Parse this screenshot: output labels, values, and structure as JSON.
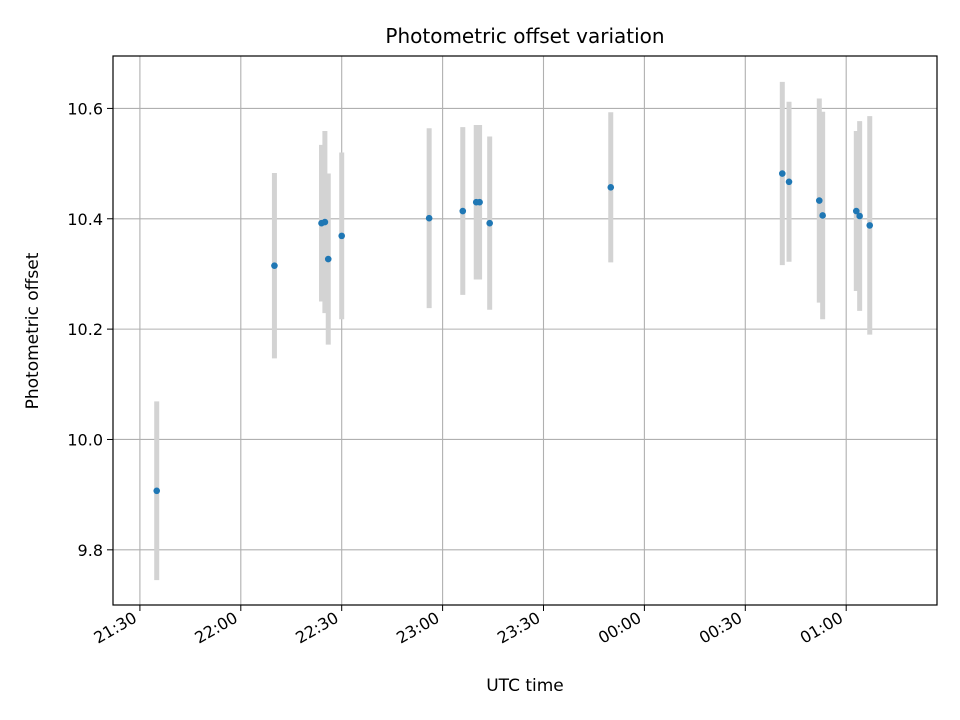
{
  "chart_data": {
    "type": "scatter",
    "title": "Photometric offset variation",
    "xlabel": "UTC time",
    "ylabel": "Photometric offset",
    "grid": true,
    "ylim": [
      9.7,
      10.695
    ],
    "xlim": [
      "21:22",
      "01:27"
    ],
    "x_ticks": [
      "21:30",
      "22:00",
      "22:30",
      "23:00",
      "23:30",
      "00:00",
      "00:30",
      "01:00"
    ],
    "y_ticks": [
      "9.8",
      "10.0",
      "10.2",
      "10.4",
      "10.6"
    ],
    "series": [
      {
        "marker_color": "#1f77b4",
        "errorbar_color": "#d3d3d3",
        "points": [
          {
            "x": "21:35",
            "y": 9.907,
            "err": 0.162
          },
          {
            "x": "22:10",
            "y": 10.315,
            "err": 0.168
          },
          {
            "x": "22:24",
            "y": 10.392,
            "err": 0.142
          },
          {
            "x": "22:25",
            "y": 10.394,
            "err": 0.165
          },
          {
            "x": "22:26",
            "y": 10.327,
            "err": 0.155
          },
          {
            "x": "22:30",
            "y": 10.369,
            "err": 0.151
          },
          {
            "x": "22:56",
            "y": 10.401,
            "err": 0.163
          },
          {
            "x": "23:06",
            "y": 10.414,
            "err": 0.152
          },
          {
            "x": "23:10",
            "y": 10.43,
            "err": 0.14
          },
          {
            "x": "23:11",
            "y": 10.43,
            "err": 0.14
          },
          {
            "x": "23:14",
            "y": 10.392,
            "err": 0.157
          },
          {
            "x": "23:50",
            "y": 10.457,
            "err": 0.136
          },
          {
            "x": "00:41",
            "y": 10.482,
            "err": 0.166
          },
          {
            "x": "00:43",
            "y": 10.467,
            "err": 0.145
          },
          {
            "x": "00:52",
            "y": 10.433,
            "err": 0.185
          },
          {
            "x": "00:53",
            "y": 10.406,
            "err": 0.188
          },
          {
            "x": "01:03",
            "y": 10.414,
            "err": 0.145
          },
          {
            "x": "01:04",
            "y": 10.405,
            "err": 0.172
          },
          {
            "x": "01:07",
            "y": 10.388,
            "err": 0.198
          }
        ]
      }
    ]
  }
}
